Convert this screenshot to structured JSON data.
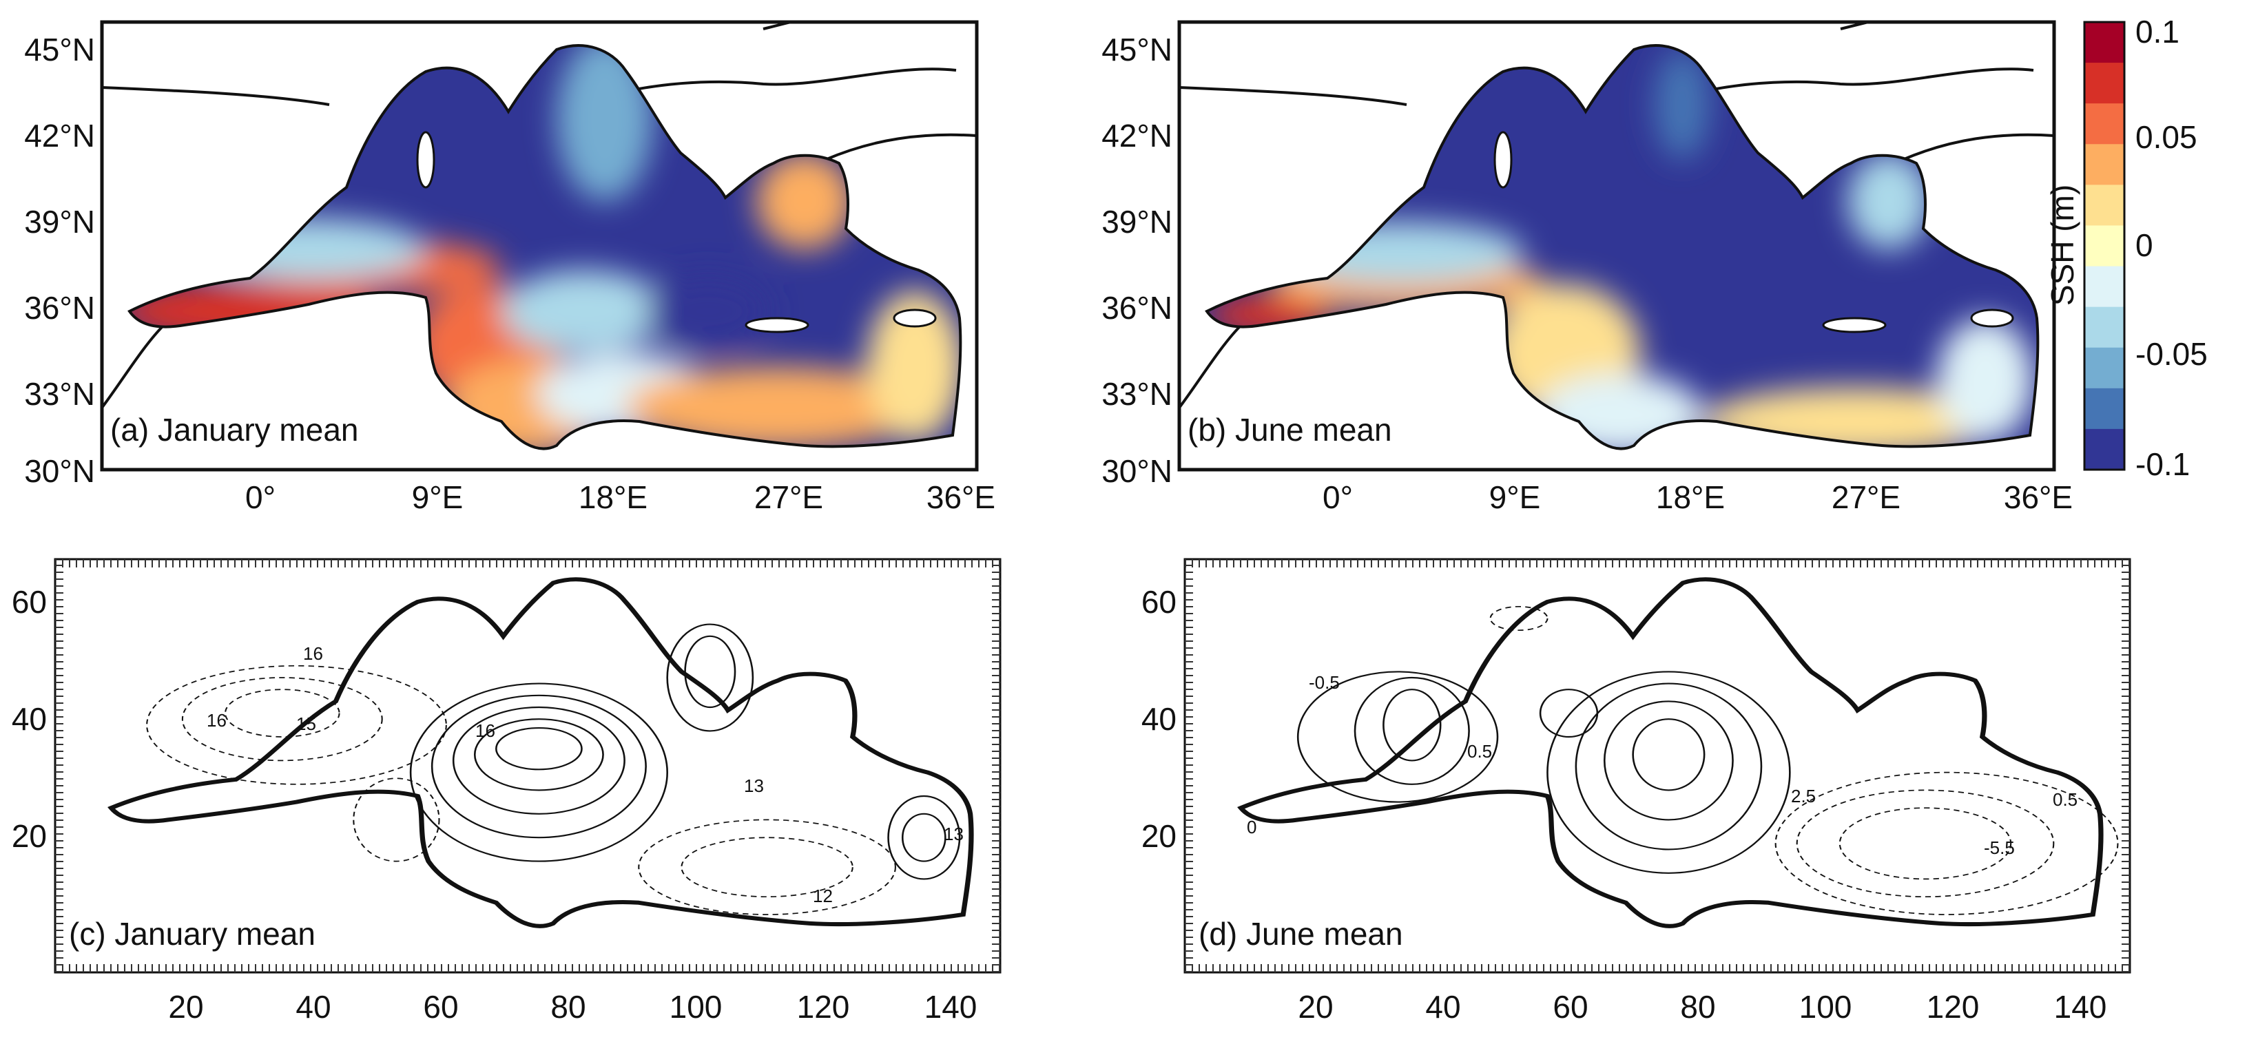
{
  "figure": {
    "panels": [
      {
        "id": "a",
        "caption": "(a) January mean",
        "y_ticks": [
          "45°N",
          "42°N",
          "39°N",
          "36°N",
          "33°N",
          "30°N"
        ],
        "x_ticks": [
          "0°",
          "9°E",
          "18°E",
          "27°E",
          "36°E"
        ]
      },
      {
        "id": "b",
        "caption": "(b) June mean",
        "y_ticks": [
          "45°N",
          "42°N",
          "39°N",
          "36°N",
          "33°N",
          "30°N"
        ],
        "x_ticks": [
          "0°",
          "9°E",
          "18°E",
          "27°E",
          "36°E"
        ]
      },
      {
        "id": "c",
        "caption": "(c) January mean",
        "y_ticks": [
          "60",
          "40",
          "20"
        ],
        "x_ticks": [
          "20",
          "40",
          "60",
          "80",
          "100",
          "120",
          "140"
        ],
        "contour_labels": [
          "16",
          "16",
          "15",
          "16",
          "13",
          "12",
          "13"
        ]
      },
      {
        "id": "d",
        "caption": "(d) June mean",
        "y_ticks": [
          "60",
          "40",
          "20"
        ],
        "x_ticks": [
          "20",
          "40",
          "60",
          "80",
          "100",
          "120",
          "140"
        ],
        "contour_labels": [
          "-0.5",
          "0.5",
          "0",
          "2.5",
          "-5.5",
          "0.5"
        ]
      }
    ],
    "colorbar": {
      "title": "SSH (m)",
      "tick_labels": [
        "0.1",
        "0.05",
        "0",
        "-0.05",
        "-0.1"
      ],
      "colors": [
        "#a50026",
        "#d73027",
        "#f46d43",
        "#fdae61",
        "#fee090",
        "#ffffbf",
        "#e0f3f8",
        "#abd9e9",
        "#74add1",
        "#4575b4",
        "#313695"
      ]
    },
    "field_colors": {
      "deep_blue": "#313695",
      "blue": "#4575b4",
      "mid_blue": "#74add1",
      "light_blue": "#abd9e9",
      "pale_blue": "#e0f3f8",
      "yellow": "#ffffbf",
      "light_orange": "#fee090",
      "orange": "#fdae61",
      "red_orange": "#f46d43",
      "red": "#d73027",
      "dark_red": "#a50026"
    }
  }
}
